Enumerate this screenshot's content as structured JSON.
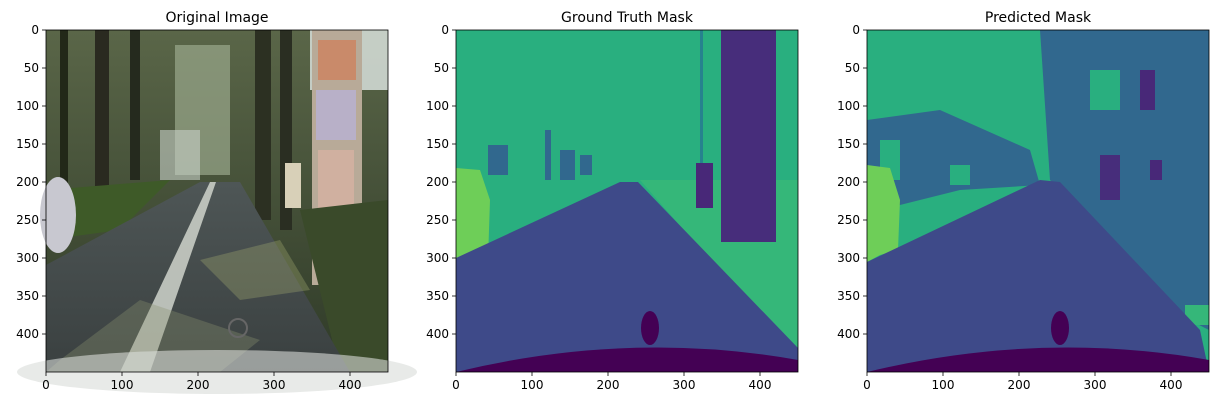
{
  "figure": {
    "colors": {
      "background": "#f8f8f8",
      "spine": "#000000",
      "viridis_dark": "#440154",
      "viridis_purple": "#482878",
      "viridis_indigo": "#3e4a89",
      "viridis_blue": "#31688e",
      "viridis_teal": "#26828e",
      "viridis_green": "#29af7f",
      "viridis_lightgreen": "#6ece58",
      "viridis_yellowgreen": "#b5de2b"
    }
  },
  "chart_data": [
    {
      "type": "heatmap",
      "title": "Original Image",
      "xlim": [
        0,
        450
      ],
      "ylim": [
        450,
        0
      ],
      "xticks": [
        0,
        100,
        200,
        300,
        400
      ],
      "yticks": [
        0,
        50,
        100,
        150,
        200,
        250,
        300,
        350,
        400
      ],
      "xtick_labels": [
        "0",
        "100",
        "200",
        "300",
        "400"
      ],
      "ytick_labels": [
        "0",
        "50",
        "100",
        "150",
        "200",
        "250",
        "300",
        "350",
        "400"
      ],
      "content": "photo"
    },
    {
      "type": "heatmap",
      "title": "Ground Truth Mask",
      "xlim": [
        0,
        450
      ],
      "ylim": [
        450,
        0
      ],
      "xticks": [
        0,
        100,
        200,
        300,
        400
      ],
      "yticks": [
        0,
        50,
        100,
        150,
        200,
        250,
        300,
        350,
        400
      ],
      "xtick_labels": [
        "0",
        "100",
        "200",
        "300",
        "400"
      ],
      "ytick_labels": [
        "0",
        "50",
        "100",
        "150",
        "200",
        "250",
        "300",
        "350",
        "400"
      ],
      "colormap": "viridis",
      "content": "mask"
    },
    {
      "type": "heatmap",
      "title": "Predicted Mask",
      "xlim": [
        0,
        450
      ],
      "ylim": [
        450,
        0
      ],
      "xticks": [
        0,
        100,
        200,
        300,
        400
      ],
      "yticks": [
        0,
        50,
        100,
        150,
        200,
        250,
        300,
        350,
        400
      ],
      "xtick_labels": [
        "0",
        "100",
        "200",
        "300",
        "400"
      ],
      "ytick_labels": [
        "0",
        "50",
        "100",
        "150",
        "200",
        "250",
        "300",
        "350",
        "400"
      ],
      "colormap": "viridis",
      "content": "mask-noisy"
    }
  ]
}
